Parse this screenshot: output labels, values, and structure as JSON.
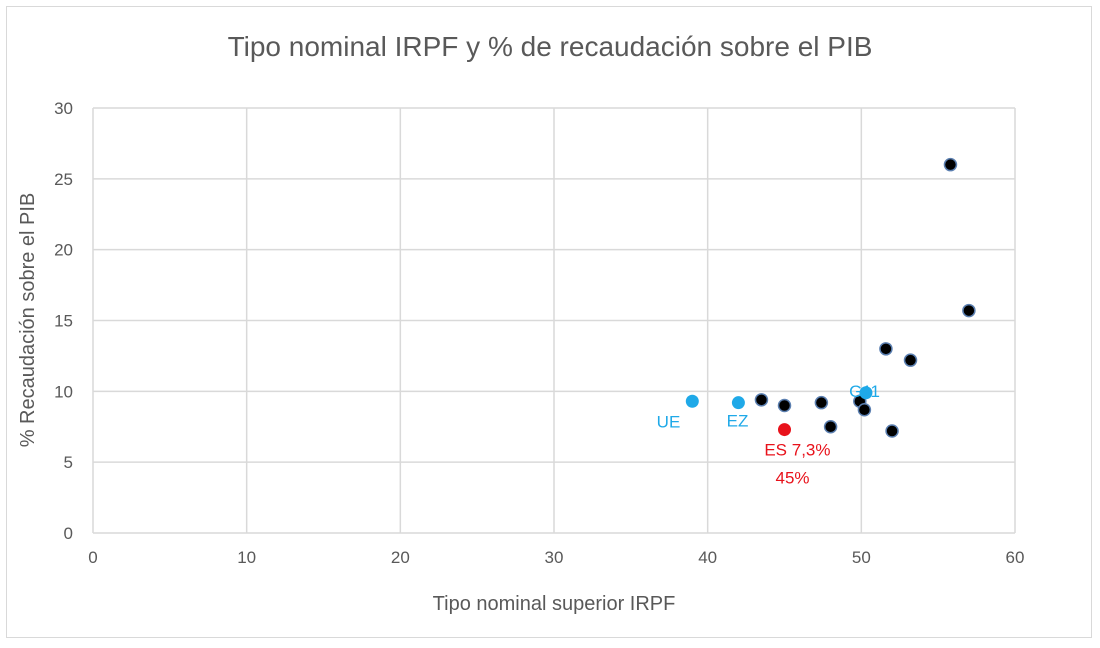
{
  "chart_data": {
    "type": "scatter",
    "title": "Tipo nominal IRPF y % de recaudación sobre el PIB",
    "xlabel": "Tipo nominal superior IRPF",
    "ylabel": "% Recaudación sobre el PIB",
    "xlim": [
      0,
      60
    ],
    "ylim": [
      0,
      30
    ],
    "xticks": [
      0,
      10,
      20,
      30,
      40,
      50,
      60
    ],
    "yticks": [
      0,
      5,
      10,
      15,
      20,
      25,
      30
    ],
    "grid": true,
    "legend": "none",
    "colors": {
      "country": "#000000",
      "aggregate": "#1fa9e8",
      "highlight": "#e8121b",
      "grid": "#d9d9d9"
    },
    "points": [
      {
        "x": 43.5,
        "y": 9.4,
        "group": "country"
      },
      {
        "x": 45.0,
        "y": 9.0,
        "group": "country"
      },
      {
        "x": 47.4,
        "y": 9.2,
        "group": "country"
      },
      {
        "x": 48.0,
        "y": 7.5,
        "group": "country"
      },
      {
        "x": 49.9,
        "y": 9.3,
        "group": "country"
      },
      {
        "x": 50.2,
        "y": 8.7,
        "group": "country"
      },
      {
        "x": 52.0,
        "y": 7.2,
        "group": "country"
      },
      {
        "x": 51.6,
        "y": 13.0,
        "group": "country"
      },
      {
        "x": 53.2,
        "y": 12.2,
        "group": "country"
      },
      {
        "x": 55.8,
        "y": 26.0,
        "group": "country"
      },
      {
        "x": 57.0,
        "y": 15.7,
        "group": "country"
      },
      {
        "x": 39.0,
        "y": 9.3,
        "group": "aggregate",
        "label": "UE"
      },
      {
        "x": 42.0,
        "y": 9.2,
        "group": "aggregate",
        "label": "EZ"
      },
      {
        "x": 50.3,
        "y": 9.9,
        "group": "aggregate",
        "label": "G11"
      },
      {
        "x": 45.0,
        "y": 7.3,
        "group": "highlight",
        "label": "ES 7,3%",
        "label2": "45%"
      }
    ]
  }
}
